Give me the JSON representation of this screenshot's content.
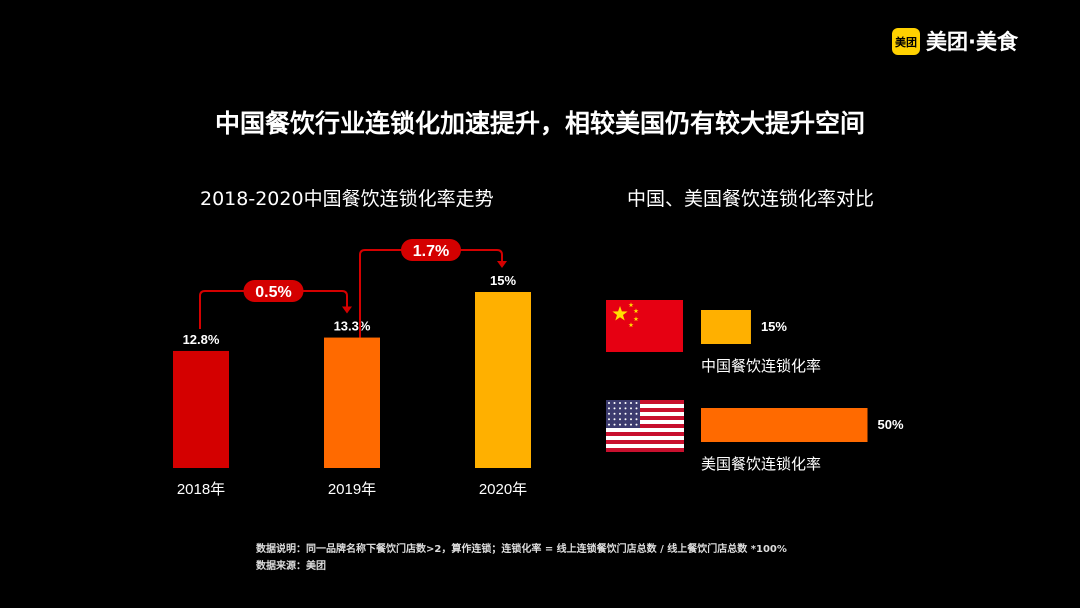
{
  "logo": {
    "badge": "美团",
    "text": "美团·美食"
  },
  "title": "中国餐饮行业连锁化加速提升，相较美国仍有较大提升空间",
  "chart_data": [
    {
      "type": "bar",
      "title": "2018-2020中国餐饮连锁化率走势",
      "categories": [
        "2018年",
        "2019年",
        "2020年"
      ],
      "values": [
        12.8,
        13.3,
        15
      ],
      "value_labels": [
        "12.8%",
        "13.3%",
        "15%"
      ],
      "colors": [
        "#d40000",
        "#ff6a00",
        "#ffb000"
      ],
      "annotations": [
        {
          "from": "2018年",
          "to": "2019年",
          "label": "0.5%"
        },
        {
          "from": "2019年",
          "to": "2020年",
          "label": "1.7%"
        }
      ],
      "annotation_color": "#d40000"
    },
    {
      "type": "bar",
      "orientation": "horizontal",
      "title": "中国、美国餐饮连锁化率对比",
      "categories": [
        "中国餐饮连锁化率",
        "美国餐饮连锁化率"
      ],
      "values": [
        15,
        50
      ],
      "value_labels": [
        "15%",
        "50%"
      ],
      "colors": [
        "#ffb000",
        "#ff6a00"
      ],
      "icons": [
        "china-flag-icon",
        "usa-flag-icon"
      ]
    }
  ],
  "notes": {
    "line1": "数据说明：同一品牌名称下餐饮门店数>2，算作连锁；连锁化率 = 线上连锁餐饮门店总数 / 线上餐饮门店总数 *100%",
    "line2": "数据来源：美团"
  }
}
